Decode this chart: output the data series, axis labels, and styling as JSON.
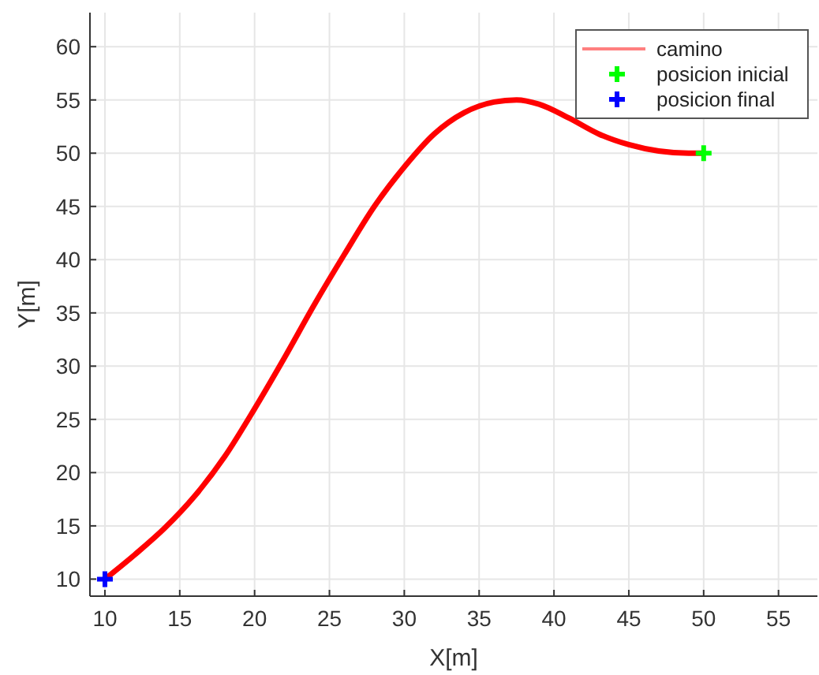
{
  "chart_data": {
    "type": "line",
    "xlabel": "X[m]",
    "ylabel": "Y[m]",
    "xlim": [
      9,
      57.6
    ],
    "ylim": [
      8.4,
      63.2
    ],
    "xticks": [
      10,
      15,
      20,
      25,
      30,
      35,
      40,
      45,
      50,
      55
    ],
    "yticks": [
      10,
      15,
      20,
      25,
      30,
      35,
      40,
      45,
      50,
      55,
      60
    ],
    "grid": true,
    "legend": "top right",
    "series": [
      {
        "name": "camino",
        "color": "#ff0000",
        "marker": "none",
        "line_style": "solid",
        "x": [
          10,
          12,
          14,
          16,
          18,
          20,
          22,
          24,
          26,
          28,
          30,
          32,
          34,
          36,
          37.5,
          39,
          41,
          43,
          45,
          47,
          49,
          50
        ],
        "values": [
          10,
          12.3,
          14.8,
          17.8,
          21.5,
          26,
          30.8,
          35.8,
          40.5,
          45,
          48.7,
          51.8,
          53.8,
          54.8,
          55,
          54.6,
          53.3,
          51.8,
          50.8,
          50.2,
          50,
          50
        ]
      },
      {
        "name": "posicion inicial",
        "type": "scatter",
        "color": "#00ff00",
        "marker": "cross",
        "x": [
          50
        ],
        "values": [
          50
        ]
      },
      {
        "name": "posicion final",
        "type": "scatter",
        "color": "#0000ff",
        "marker": "cross",
        "x": [
          10
        ],
        "values": [
          10
        ]
      }
    ]
  }
}
